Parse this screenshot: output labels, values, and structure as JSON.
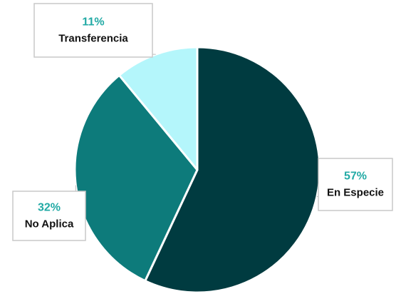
{
  "chart_data": {
    "type": "pie",
    "categories": [
      "En Especie",
      "No Aplica",
      "Transferencia"
    ],
    "values": [
      57,
      32,
      11
    ],
    "value_labels": [
      "57%",
      "32%",
      "11%"
    ],
    "colors": [
      "#003b40",
      "#0d7b7b",
      "#b4f6fb"
    ]
  }
}
